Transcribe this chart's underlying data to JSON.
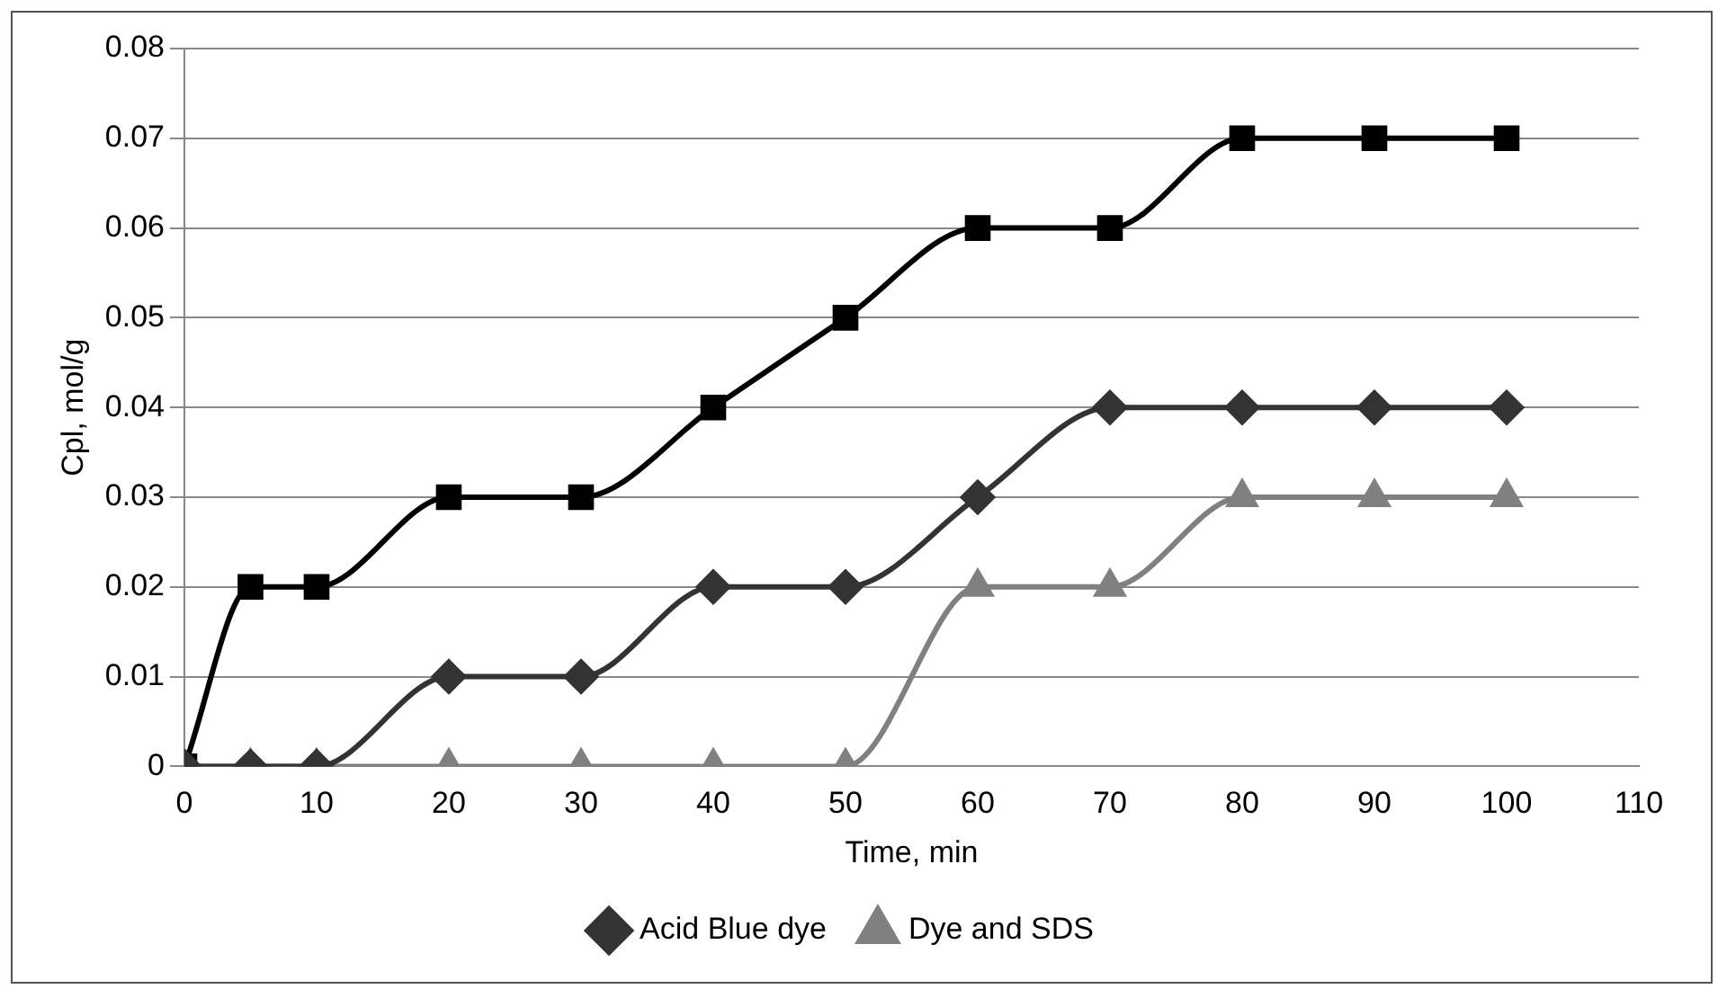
{
  "chart_data": {
    "type": "line",
    "xlabel": "Time, min",
    "ylabel": "Cpl, mol/g",
    "x": [
      0,
      5,
      10,
      20,
      30,
      40,
      50,
      60,
      70,
      80,
      90,
      100
    ],
    "series": [
      {
        "name": "Acid Blue dye",
        "color": "#333333",
        "marker": "diamond",
        "values": [
          0,
          0,
          0,
          0.01,
          0.01,
          0.02,
          0.02,
          0.03,
          0.04,
          0.04,
          0.04,
          0.04
        ]
      },
      {
        "color": "#000000",
        "marker": "square",
        "values": [
          0,
          0.02,
          0.02,
          0.03,
          0.03,
          0.04,
          0.05,
          0.06,
          0.06,
          0.07,
          0.07,
          0.07
        ]
      },
      {
        "name": "Dye and SDS",
        "color": "#808080",
        "marker": "triangle",
        "values": [
          0,
          0,
          0,
          0,
          0,
          0,
          0,
          0.02,
          0.02,
          0.03,
          0.03,
          0.03
        ]
      }
    ],
    "xlim": [
      0,
      110
    ],
    "xticks": [
      0,
      10,
      20,
      30,
      40,
      50,
      60,
      70,
      80,
      90,
      100,
      110
    ],
    "ylim": [
      0,
      0.08
    ],
    "yticks": [
      0,
      0.01,
      0.02,
      0.03,
      0.04,
      0.05,
      0.06,
      0.07,
      0.08
    ],
    "grid": "y",
    "legend": "bottom",
    "line_style": "solid"
  }
}
